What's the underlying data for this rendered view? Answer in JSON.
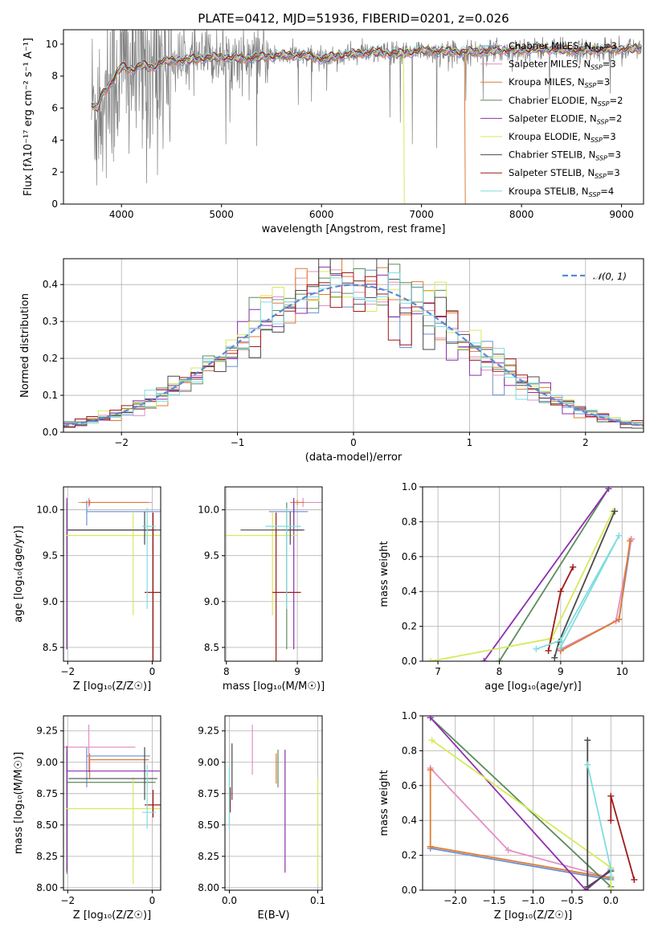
{
  "figure_title": "PLATE=0412, MJD=51936, FIBERID=0201, z=0.026",
  "colors": {
    "chabrier_miles": "#6a8fd0",
    "salpeter_miles": "#e38fc4",
    "kroupa_miles": "#e07b32",
    "chabrier_elodie": "#5c8c5c",
    "salpeter_elodie": "#8e2fae",
    "kroupa_elodie": "#d6ea5a",
    "chabrier_stelib": "#4a4a4a",
    "salpeter_stelib": "#a01818",
    "kroupa_stelib": "#7fdde0",
    "gaussian": "#5b8ad6",
    "data": "#808080"
  },
  "chart_data": [
    {
      "id": "spectrum",
      "type": "line",
      "title": "PLATE=0412, MJD=51936, FIBERID=0201, z=0.026",
      "xlabel": "wavelength [Angstrom, rest frame]",
      "ylabel": "Flux [fλ10⁻¹⁷ erg cm⁻² s⁻¹ A⁻¹]",
      "xlim": [
        3420,
        9220
      ],
      "ylim": [
        0,
        10.9
      ],
      "xticks": [
        4000,
        5000,
        6000,
        7000,
        8000,
        9000
      ],
      "yticks": [
        0,
        2,
        4,
        6,
        8,
        10
      ],
      "legend_position": "top-right",
      "legend": [
        {
          "label": "Chabrier MILES, N",
          "sub": "SSP",
          "suffix": "=3",
          "color_key": "chabrier_miles"
        },
        {
          "label": "Salpeter MILES, N",
          "sub": "SSP",
          "suffix": "=3",
          "color_key": "salpeter_miles"
        },
        {
          "label": "Kroupa MILES, N",
          "sub": "SSP",
          "suffix": "=3",
          "color_key": "kroupa_miles"
        },
        {
          "label": "Chabrier ELODIE, N",
          "sub": "SSP",
          "suffix": "=2",
          "color_key": "chabrier_elodie"
        },
        {
          "label": "Salpeter ELODIE, N",
          "sub": "SSP",
          "suffix": "=2",
          "color_key": "salpeter_elodie"
        },
        {
          "label": "Kroupa ELODIE, N",
          "sub": "SSP",
          "suffix": "=3",
          "color_key": "kroupa_elodie"
        },
        {
          "label": "Chabrier STELIB, N",
          "sub": "SSP",
          "suffix": "=3",
          "color_key": "chabrier_stelib"
        },
        {
          "label": "Salpeter STELIB, N",
          "sub": "SSP",
          "suffix": "=3",
          "color_key": "salpeter_stelib"
        },
        {
          "label": "Kroupa STELIB, N",
          "sub": "SSP",
          "suffix": "=4",
          "color_key": "kroupa_stelib"
        }
      ],
      "data_series": {
        "x_range": [
          3700,
          9200
        ],
        "typical_flux": 9.3,
        "noise_region_end": 4500
      },
      "model_continuum": [
        [
          3700,
          6.2
        ],
        [
          3760,
          5.9
        ],
        [
          3800,
          6.8
        ],
        [
          3850,
          7.2
        ],
        [
          3900,
          7.6
        ],
        [
          3950,
          8.1
        ],
        [
          4000,
          8.6
        ],
        [
          4100,
          8.4
        ],
        [
          4200,
          8.7
        ],
        [
          4300,
          8.5
        ],
        [
          4400,
          8.9
        ],
        [
          4600,
          9.0
        ],
        [
          4800,
          9.1
        ],
        [
          5000,
          9.2
        ],
        [
          5200,
          9.1
        ],
        [
          5400,
          9.2
        ],
        [
          5600,
          9.3
        ],
        [
          5800,
          9.3
        ],
        [
          6000,
          9.1
        ],
        [
          6200,
          9.3
        ],
        [
          6500,
          9.5
        ],
        [
          6800,
          9.4
        ],
        [
          7000,
          9.6
        ],
        [
          7400,
          9.5
        ],
        [
          7800,
          9.6
        ],
        [
          8200,
          9.7
        ],
        [
          8600,
          9.6
        ],
        [
          9000,
          9.7
        ]
      ],
      "drop_lines": [
        {
          "x": 6820,
          "color_key": "kroupa_elodie"
        },
        {
          "x": 7430,
          "color_key": "kroupa_miles"
        }
      ]
    },
    {
      "id": "residuals",
      "type": "line",
      "xlabel": "(data-model)/error",
      "ylabel": "Normed distribution",
      "xlim": [
        -2.5,
        2.5
      ],
      "ylim": [
        0,
        0.47
      ],
      "xticks": [
        -2,
        -1,
        0,
        1,
        2
      ],
      "yticks": [
        0.0,
        0.1,
        0.2,
        0.3,
        0.4
      ],
      "legend_position": "top-right",
      "legend": [
        {
          "label": "𝒩(0, 1)",
          "color_key": "gaussian"
        }
      ],
      "bin_width": 0.1,
      "bin_start": -2.5,
      "bin_end": 2.5
    },
    {
      "id": "age_vs_Z",
      "type": "scatter",
      "xlabel": "Z [log₁₀(Z/Z☉)]",
      "ylabel": "age  [log₁₀(age/yr)]",
      "xlim": [
        -2.1,
        0.2
      ],
      "ylim": [
        8.35,
        10.25
      ],
      "xticks": [
        -2,
        0
      ],
      "yticks": [
        8.5,
        9.0,
        9.5,
        10.0
      ],
      "points": [
        {
          "color_key": "chabrier_miles",
          "x": -1.55,
          "y": 9.98,
          "xerr": [
            0.0,
            1.75
          ],
          "yerr": [
            0.15,
            0.12
          ]
        },
        {
          "color_key": "salpeter_miles",
          "x": -1.5,
          "y": 10.08,
          "xerr": [
            0.25,
            1.5
          ],
          "yerr": [
            0.05,
            0.05
          ]
        },
        {
          "color_key": "kroupa_miles",
          "x": -1.48,
          "y": 10.08,
          "xerr": [
            0.2,
            1.4
          ],
          "yerr": [
            0.03,
            0.03
          ]
        },
        {
          "color_key": "chabrier_elodie",
          "x": -2.02,
          "y": 9.78,
          "xerr": [
            0.0,
            2.1
          ],
          "yerr": [
            1.3,
            0.3
          ]
        },
        {
          "color_key": "salpeter_elodie",
          "x": -2.02,
          "y": 9.78,
          "xerr": [
            0.0,
            2.1
          ],
          "yerr": [
            1.3,
            0.35
          ]
        },
        {
          "color_key": "kroupa_elodie",
          "x": -0.45,
          "y": 9.72,
          "xerr": [
            1.6,
            1.4
          ],
          "yerr": [
            0.87,
            0.25
          ]
        },
        {
          "color_key": "chabrier_stelib",
          "x": -0.18,
          "y": 9.78,
          "xerr": [
            1.8,
            0.45
          ],
          "yerr": [
            0.16,
            0.2
          ]
        },
        {
          "color_key": "salpeter_stelib",
          "x": 0.02,
          "y": 9.1,
          "xerr": [
            0.2,
            0.2
          ],
          "yerr": [
            0.85,
            0.87
          ]
        },
        {
          "color_key": "kroupa_stelib",
          "x": -0.12,
          "y": 9.82,
          "xerr": [
            0.12,
            0.2
          ],
          "yerr": [
            0.9,
            0.2
          ]
        }
      ]
    },
    {
      "id": "age_vs_mass",
      "type": "scatter",
      "xlabel": "mass [log₁₀(M/M☉)]",
      "ylabel": "",
      "xlim": [
        7.98,
        9.35
      ],
      "ylim": [
        8.35,
        10.25
      ],
      "xticks": [
        8,
        9
      ],
      "yticks": [
        8.5,
        9.0,
        9.5,
        10.0
      ],
      "points": [
        {
          "color_key": "chabrier_miles",
          "x": 8.95,
          "y": 9.98,
          "xerr": [
            0.35,
            0.2
          ],
          "yerr": [
            0.15,
            0.12
          ]
        },
        {
          "color_key": "salpeter_miles",
          "x": 9.08,
          "y": 10.08,
          "xerr": [
            0.1,
            0.3
          ],
          "yerr": [
            0.05,
            0.05
          ]
        },
        {
          "color_key": "kroupa_miles",
          "x": 9.0,
          "y": 10.08,
          "xerr": [
            0.1,
            0.1
          ],
          "yerr": [
            0.03,
            0.03
          ]
        },
        {
          "color_key": "chabrier_elodie",
          "x": 8.85,
          "y": 9.78,
          "xerr": [
            0.0,
            0.15
          ],
          "yerr": [
            1.3,
            0.3
          ]
        },
        {
          "color_key": "salpeter_elodie",
          "x": 8.95,
          "y": 9.78,
          "xerr": [
            0.0,
            0.12
          ],
          "yerr": [
            1.3,
            0.35
          ]
        },
        {
          "color_key": "kroupa_elodie",
          "x": 8.65,
          "y": 9.72,
          "xerr": [
            0.7,
            0.35
          ],
          "yerr": [
            0.87,
            0.25
          ]
        },
        {
          "color_key": "chabrier_stelib",
          "x": 8.9,
          "y": 9.78,
          "xerr": [
            0.7,
            0.2
          ],
          "yerr": [
            0.16,
            0.2
          ]
        },
        {
          "color_key": "salpeter_stelib",
          "x": 8.7,
          "y": 9.1,
          "xerr": [
            0.05,
            0.35
          ],
          "yerr": [
            0.85,
            0.87
          ]
        },
        {
          "color_key": "kroupa_stelib",
          "x": 8.85,
          "y": 9.82,
          "xerr": [
            0.3,
            0.2
          ],
          "yerr": [
            0.9,
            0.2
          ]
        }
      ]
    },
    {
      "id": "weight_vs_age",
      "type": "line",
      "xlabel": "age  [log₁₀(age/yr)]",
      "ylabel": "mass weight",
      "xlim": [
        6.75,
        10.35
      ],
      "ylim": [
        0,
        1.0
      ],
      "xticks": [
        7,
        8,
        9,
        10
      ],
      "yticks": [
        0.0,
        0.2,
        0.4,
        0.6,
        0.8,
        1.0
      ],
      "series": [
        {
          "color_key": "chabrier_miles",
          "x": [
            9.0,
            9.95,
            10.15
          ],
          "y": [
            0.06,
            0.24,
            0.7
          ]
        },
        {
          "color_key": "salpeter_miles",
          "x": [
            9.0,
            9.9,
            10.15
          ],
          "y": [
            0.07,
            0.23,
            0.7
          ]
        },
        {
          "color_key": "kroupa_miles",
          "x": [
            9.0,
            9.95,
            10.13
          ],
          "y": [
            0.06,
            0.24,
            0.69
          ]
        },
        {
          "color_key": "chabrier_elodie",
          "x": [
            8.0,
            9.78
          ],
          "y": [
            0.0,
            0.99
          ]
        },
        {
          "color_key": "salpeter_elodie",
          "x": [
            7.75,
            9.78
          ],
          "y": [
            0.0,
            0.99
          ]
        },
        {
          "color_key": "kroupa_elodie",
          "x": [
            6.88,
            8.85,
            9.85
          ],
          "y": [
            0.0,
            0.13,
            0.86
          ]
        },
        {
          "color_key": "chabrier_stelib",
          "x": [
            8.9,
            8.97,
            9.88
          ],
          "y": [
            0.02,
            0.11,
            0.86
          ]
        },
        {
          "color_key": "salpeter_stelib",
          "x": [
            8.8,
            9.0,
            9.2
          ],
          "y": [
            0.06,
            0.4,
            0.54
          ]
        },
        {
          "color_key": "kroupa_stelib",
          "x": [
            8.6,
            9.0,
            9.95,
            9.0
          ],
          "y": [
            0.07,
            0.12,
            0.72,
            0.08
          ]
        }
      ]
    },
    {
      "id": "mass_vs_Z",
      "type": "scatter",
      "xlabel": "Z [log₁₀(Z/Z☉)]",
      "ylabel": "mass [log₁₀(M/M☉)]",
      "xlim": [
        -2.1,
        0.2
      ],
      "ylim": [
        7.98,
        9.37
      ],
      "xticks": [
        -2,
        0
      ],
      "yticks": [
        8.0,
        8.25,
        8.5,
        8.75,
        9.0,
        9.25
      ],
      "points": [
        {
          "color_key": "chabrier_miles",
          "x": -1.55,
          "y": 9.05,
          "xerr": [
            0.0,
            1.5
          ],
          "yerr": [
            0.25,
            0.07
          ]
        },
        {
          "color_key": "salpeter_miles",
          "x": -1.5,
          "y": 9.12,
          "xerr": [
            0.6,
            1.1
          ],
          "yerr": [
            0.2,
            0.18
          ]
        },
        {
          "color_key": "kroupa_miles",
          "x": -1.48,
          "y": 9.02,
          "xerr": [
            0.0,
            1.4
          ],
          "yerr": [
            0.15,
            0.05
          ]
        },
        {
          "color_key": "chabrier_elodie",
          "x": -2.02,
          "y": 8.84,
          "xerr": [
            0.0,
            2.1
          ],
          "yerr": [
            0.73,
            0.25
          ]
        },
        {
          "color_key": "salpeter_elodie",
          "x": -2.02,
          "y": 8.93,
          "xerr": [
            0.0,
            2.2
          ],
          "yerr": [
            0.8,
            0.2
          ]
        },
        {
          "color_key": "kroupa_elodie",
          "x": -0.45,
          "y": 8.63,
          "xerr": [
            1.6,
            1.4
          ],
          "yerr": [
            0.6,
            0.25
          ]
        },
        {
          "color_key": "chabrier_stelib",
          "x": -0.18,
          "y": 8.87,
          "xerr": [
            1.8,
            0.3
          ],
          "yerr": [
            0.17,
            0.25
          ]
        },
        {
          "color_key": "salpeter_stelib",
          "x": 0.02,
          "y": 8.66,
          "xerr": [
            0.2,
            0.2
          ],
          "yerr": [
            0.1,
            0.12
          ]
        },
        {
          "color_key": "kroupa_stelib",
          "x": -0.12,
          "y": 8.6,
          "xerr": [
            0.12,
            0.2
          ],
          "yerr": [
            0.13,
            0.38
          ]
        }
      ]
    },
    {
      "id": "mass_vs_ebv",
      "type": "scatter",
      "xlabel": "E(B-V)",
      "ylabel": "",
      "xlim": [
        -0.005,
        0.105
      ],
      "ylim": [
        7.98,
        9.37
      ],
      "xticks": [
        0.0,
        0.1
      ],
      "xtick_labels": [
        "0.0",
        "0.1"
      ],
      "yticks": [
        8.0,
        8.25,
        8.5,
        8.75,
        9.0,
        9.25
      ],
      "points": [
        {
          "color_key": "chabrier_miles",
          "x": 0.0,
          "y": 8.75,
          "yerr": [
            0.25,
            0.2
          ]
        },
        {
          "color_key": "salpeter_miles",
          "x": 0.026,
          "y": 9.1,
          "yerr": [
            0.2,
            0.2
          ]
        },
        {
          "color_key": "kroupa_miles",
          "x": 0.053,
          "y": 8.95,
          "yerr": [
            0.12,
            0.12
          ]
        },
        {
          "color_key": "chabrier_elodie",
          "x": 0.055,
          "y": 8.95,
          "yerr": [
            0.15,
            0.15
          ]
        },
        {
          "color_key": "salpeter_elodie",
          "x": 0.063,
          "y": 8.6,
          "yerr": [
            0.48,
            0.5
          ]
        },
        {
          "color_key": "kroupa_elodie",
          "x": 0.1,
          "y": 8.45,
          "yerr": [
            0.42,
            0.42
          ]
        },
        {
          "color_key": "chabrier_stelib",
          "x": 0.003,
          "y": 8.95,
          "yerr": [
            0.25,
            0.2
          ]
        },
        {
          "color_key": "salpeter_stelib",
          "x": 0.001,
          "y": 8.7,
          "yerr": [
            0.1,
            0.1
          ]
        },
        {
          "color_key": "kroupa_stelib",
          "x": 0.0,
          "y": 8.6,
          "yerr": [
            0.13,
            0.38
          ]
        }
      ]
    },
    {
      "id": "weight_vs_Z",
      "type": "line",
      "xlabel": "Z [log₁₀(Z/Z☉)]",
      "ylabel": "mass weight",
      "xlim": [
        -2.42,
        0.42
      ],
      "ylim": [
        0,
        1.0
      ],
      "xticks": [
        -2.0,
        -1.5,
        -1.0,
        -0.5,
        0.0
      ],
      "xtick_labels": [
        "−2.0",
        "−1.5",
        "−1.0",
        "−0.5",
        "0.0"
      ],
      "yticks": [
        0.0,
        0.2,
        0.4,
        0.6,
        0.8,
        1.0
      ],
      "series": [
        {
          "color_key": "chabrier_miles",
          "x": [
            -2.32,
            0.0
          ],
          "y": [
            0.24,
            0.06
          ]
        },
        {
          "color_key": "salpeter_miles",
          "x": [
            -2.32,
            -1.32,
            0.0
          ],
          "y": [
            0.7,
            0.23,
            0.07
          ]
        },
        {
          "color_key": "kroupa_miles",
          "x": [
            -2.32,
            -2.32,
            0.0
          ],
          "y": [
            0.69,
            0.25,
            0.07
          ]
        },
        {
          "color_key": "chabrier_elodie",
          "x": [
            -2.32,
            0.0
          ],
          "y": [
            0.99,
            0.02
          ]
        },
        {
          "color_key": "salpeter_elodie",
          "x": [
            -2.32,
            -0.32,
            0.0
          ],
          "y": [
            0.99,
            0.0,
            0.12
          ]
        },
        {
          "color_key": "kroupa_elodie",
          "x": [
            -2.3,
            0.0,
            0.0
          ],
          "y": [
            0.86,
            0.13,
            0.0
          ]
        },
        {
          "color_key": "chabrier_stelib",
          "x": [
            -0.3,
            -0.3,
            0.0
          ],
          "y": [
            0.86,
            0.02,
            0.11
          ]
        },
        {
          "color_key": "salpeter_stelib",
          "x": [
            0.0,
            0.0,
            0.3
          ],
          "y": [
            0.4,
            0.54,
            0.06
          ]
        },
        {
          "color_key": "kroupa_stelib",
          "x": [
            -0.3,
            0.0,
            0.0
          ],
          "y": [
            0.72,
            0.12,
            0.08
          ]
        }
      ]
    }
  ]
}
